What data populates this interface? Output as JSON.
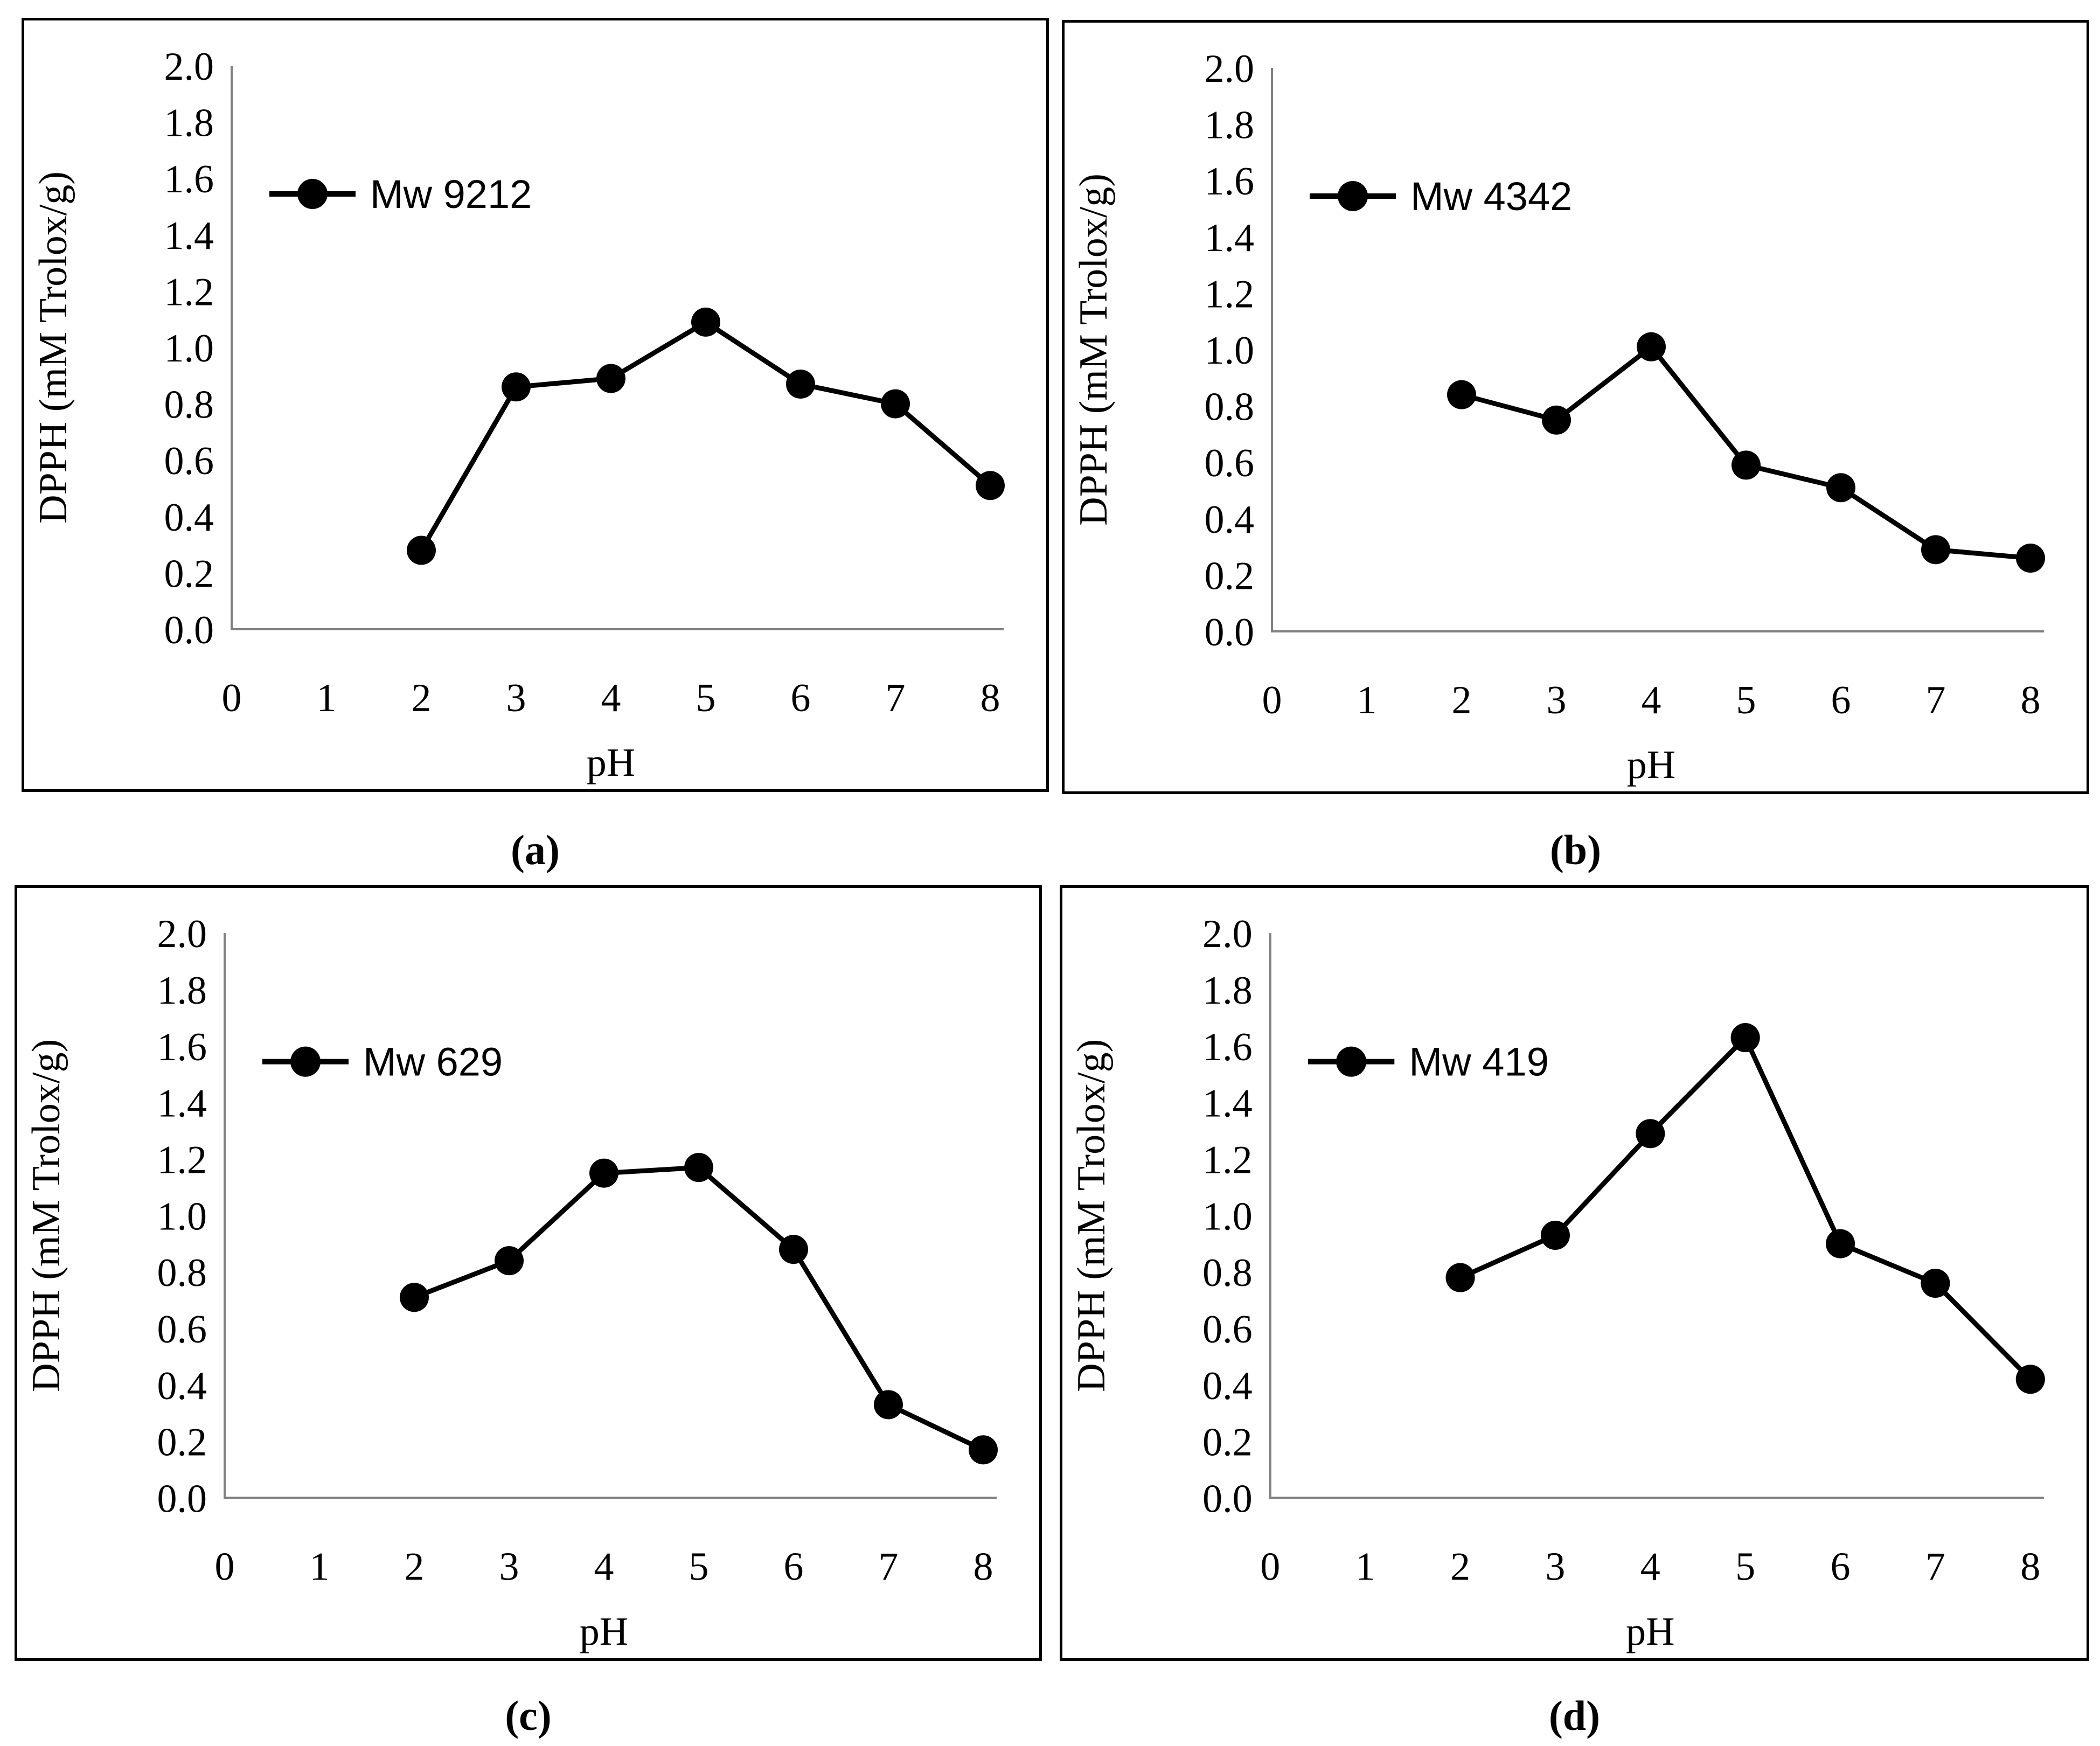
{
  "style": {
    "series_color": "#000000",
    "marker_color": "#000000",
    "axis_color": "#808080",
    "text_color": "#000000",
    "panel_border_color": "#000000",
    "background_color": "#ffffff"
  },
  "axes_shared": {
    "xlabel": "pH",
    "ylabel": "DPPH (mM Trolox/g)",
    "x_tick_labels": [
      "0",
      "1",
      "2",
      "3",
      "4",
      "5",
      "6",
      "7",
      "8"
    ],
    "y_tick_labels": [
      "0.0",
      "0.2",
      "0.4",
      "0.6",
      "0.8",
      "1.0",
      "1.2",
      "1.4",
      "1.6",
      "1.8",
      "2.0"
    ],
    "xlim": [
      0,
      8
    ],
    "ylim": [
      0.0,
      2.0
    ],
    "grid": false,
    "legend_position": "top-left"
  },
  "chart_data": [
    {
      "type": "line",
      "panel": "a",
      "caption": "(a)",
      "legend": "Mw 9212",
      "marker": "circle",
      "xlabel": "pH",
      "ylabel": "DPPH (mM Trolox/g)",
      "x": [
        2,
        3,
        4,
        5,
        6,
        7,
        8
      ],
      "values": [
        0.28,
        0.86,
        0.89,
        1.09,
        0.87,
        0.8,
        0.51
      ]
    },
    {
      "type": "line",
      "panel": "b",
      "caption": "(b)",
      "legend": "Mw 4342",
      "marker": "circle",
      "xlabel": "pH",
      "ylabel": "DPPH (mM Trolox/g)",
      "x": [
        2,
        3,
        4,
        5,
        6,
        7,
        8
      ],
      "values": [
        0.84,
        0.75,
        1.01,
        0.59,
        0.51,
        0.29,
        0.26
      ]
    },
    {
      "type": "line",
      "panel": "c",
      "caption": "(c)",
      "legend": "Mw 629",
      "marker": "circle",
      "xlabel": "pH",
      "ylabel": "DPPH (mM Trolox/g)",
      "x": [
        2,
        3,
        4,
        5,
        6,
        7,
        8
      ],
      "values": [
        0.71,
        0.84,
        1.15,
        1.17,
        0.88,
        0.33,
        0.17
      ]
    },
    {
      "type": "line",
      "panel": "d",
      "caption": "(d)",
      "legend": "Mw 419",
      "marker": "circle",
      "xlabel": "pH",
      "ylabel": "DPPH (mM Trolox/g)",
      "x": [
        2,
        3,
        4,
        5,
        6,
        7,
        8
      ],
      "values": [
        0.78,
        0.93,
        1.29,
        1.63,
        0.9,
        0.76,
        0.42
      ]
    }
  ]
}
